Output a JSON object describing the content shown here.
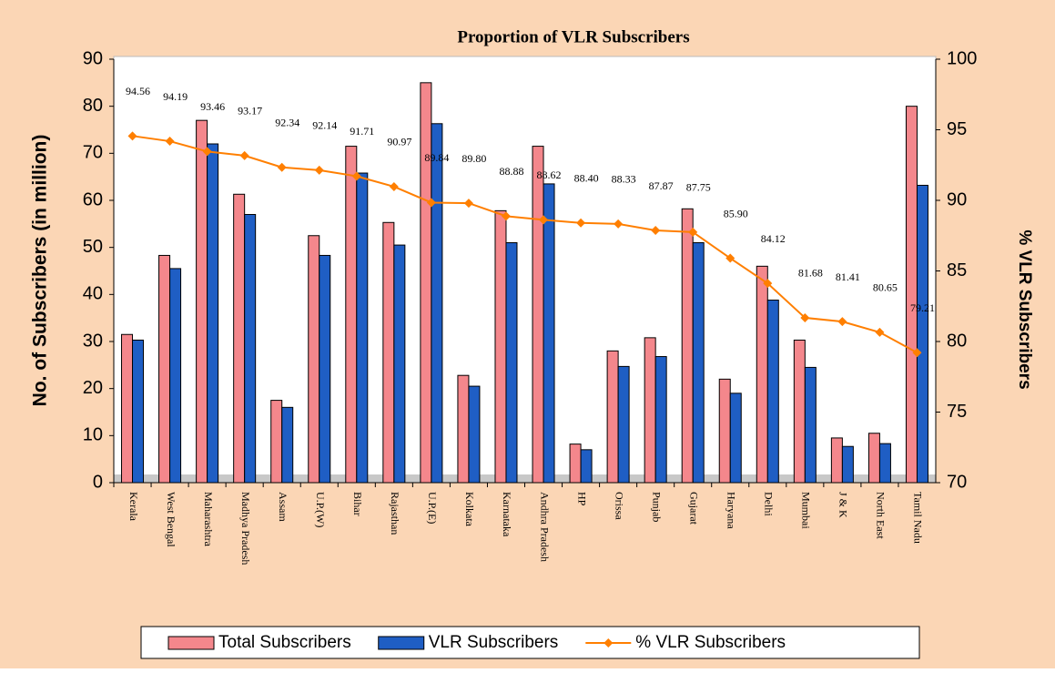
{
  "chart_data": {
    "type": "bar_line",
    "title": "Proportion of VLR Subscribers",
    "y_label": "No. of Subscribers (in million)",
    "y2_label": "% VLR Subscribers",
    "categories": [
      "Kerala",
      "West Bengal",
      "Maharashtra",
      "Madhya Pradesh",
      "Assam",
      "U.P.(W)",
      "Bihar",
      "Rajasthan",
      "U.P.(E)",
      "Kolkata",
      "Karnataka",
      "Andhra Pradesh",
      "HP",
      "Orissa",
      "Punjab",
      "Gujarat",
      "Haryana",
      "Delhi",
      "Mumbai",
      "J & K",
      "North East",
      "Tamil Nadu"
    ],
    "series": [
      {
        "name": "Total Subscribers",
        "color": "#f4878c",
        "kind": "bar",
        "values": [
          31.5,
          48.3,
          77,
          61.3,
          17.5,
          52.5,
          71.5,
          55.3,
          85,
          22.8,
          57.8,
          71.5,
          8.2,
          28,
          30.8,
          58.2,
          22,
          46,
          30.3,
          9.5,
          10.5,
          80
        ]
      },
      {
        "name": "VLR Subscribers",
        "color": "#1f5ec4",
        "kind": "bar",
        "values": [
          30.3,
          45.5,
          72,
          57,
          16,
          48.3,
          65.8,
          50.5,
          76.3,
          20.5,
          51,
          63.5,
          7,
          24.7,
          26.8,
          51,
          19,
          38.8,
          24.5,
          7.7,
          8.3,
          63.2
        ]
      },
      {
        "name": "% VLR Subscribers",
        "color": "#ff7f00",
        "kind": "line",
        "axis": "y2",
        "values": [
          94.56,
          94.19,
          93.46,
          93.17,
          92.34,
          92.14,
          91.71,
          90.97,
          89.84,
          89.8,
          88.88,
          88.62,
          88.4,
          88.33,
          87.87,
          87.75,
          85.9,
          84.12,
          81.68,
          81.41,
          80.65,
          79.21
        ],
        "value_labels": [
          "94.56",
          "94.19",
          "93.46",
          "93.17",
          "92.34",
          "92.14",
          "91.71",
          "90.97",
          "89.84",
          "89.80",
          "88.88",
          "88.62",
          "88.40",
          "88.33",
          "87.87",
          "87.75",
          "85.90",
          "84.12",
          "81.68",
          "81.41",
          "80.65",
          "79.21"
        ]
      }
    ],
    "ylim": [
      0,
      90
    ],
    "yticks": [
      0,
      10,
      20,
      30,
      40,
      50,
      60,
      70,
      80,
      90
    ],
    "y2lim": [
      70,
      100
    ],
    "y2ticks": [
      70,
      75,
      80,
      85,
      90,
      95,
      100
    ],
    "legend": "bottom"
  }
}
